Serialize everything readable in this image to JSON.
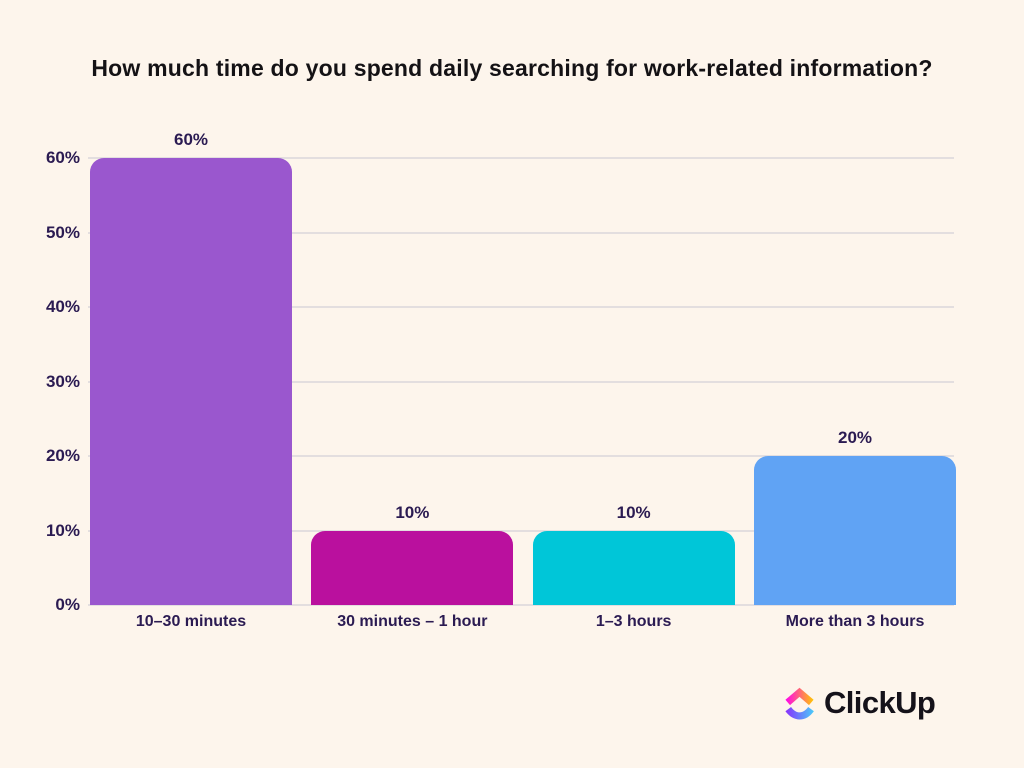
{
  "title": "How much time do you spend daily searching for work-related information?",
  "colors": {
    "background": "#FDF5EC",
    "title_text": "#141215",
    "axis_text": "#2B1B52",
    "gridline": "#E3DEDF",
    "logo_text": "#15121A",
    "logo_top_start": "#FF02F0",
    "logo_top_end": "#FFC800",
    "logo_bottom_start": "#8930FD",
    "logo_bottom_end": "#49CCF9"
  },
  "chart_data": {
    "type": "bar",
    "title": "How much time do you spend daily searching for work-related information?",
    "categories": [
      "10–30 minutes",
      "30 minutes – 1 hour",
      "1–3 hours",
      "More than 3 hours"
    ],
    "values": [
      60,
      10,
      10,
      20
    ],
    "value_labels": [
      "60%",
      "10%",
      "10%",
      "20%"
    ],
    "bar_colors": [
      "#9A57CE",
      "#BA109E",
      "#00C6D8",
      "#60A3F4"
    ],
    "xlabel": "",
    "ylabel": "",
    "ylim": [
      0,
      60
    ],
    "ytick_interval": 10,
    "ytick_labels": [
      "0%",
      "10%",
      "20%",
      "30%",
      "40%",
      "50%",
      "60%"
    ],
    "grid": true,
    "legend": false
  },
  "footer": {
    "brand": "ClickUp"
  }
}
